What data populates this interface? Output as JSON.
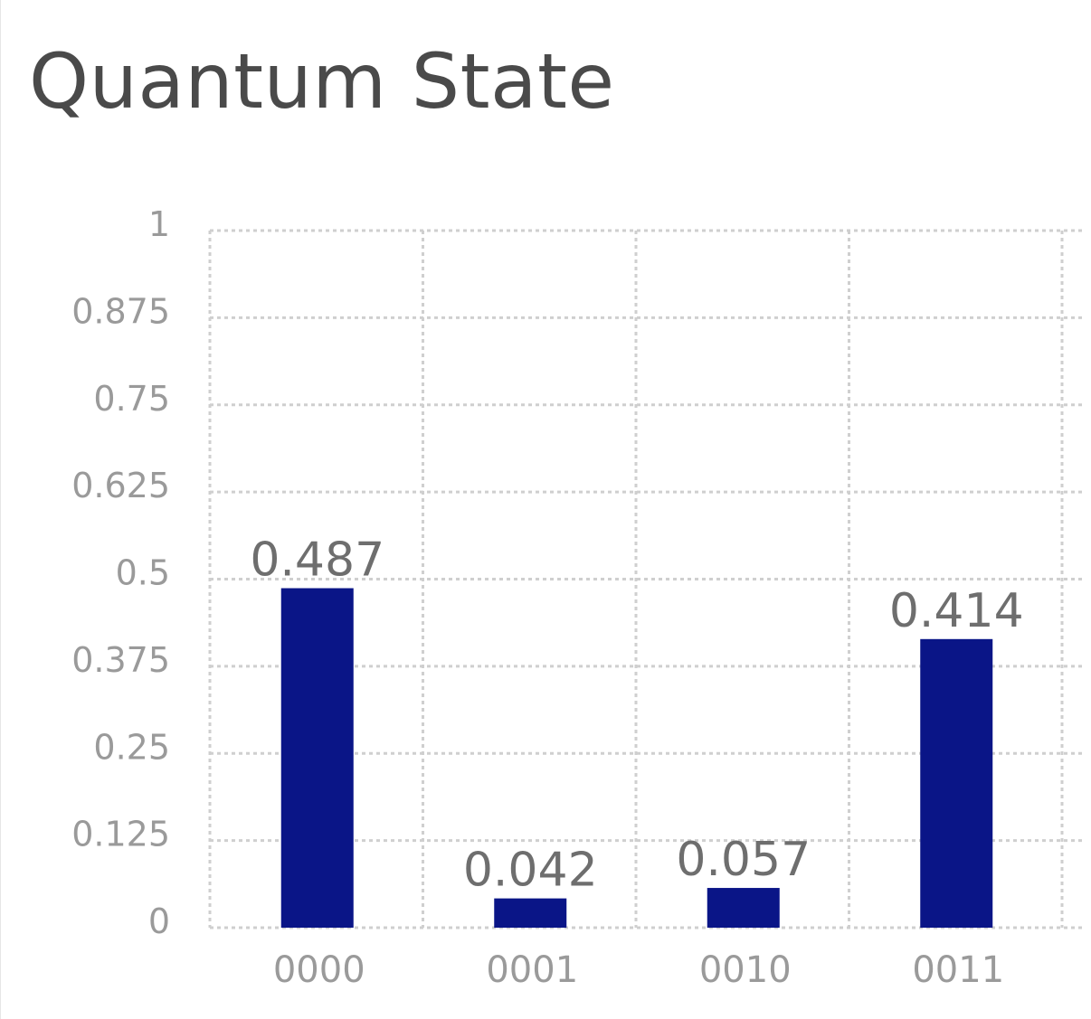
{
  "chart_data": {
    "type": "bar",
    "title": "Quantum State",
    "categories": [
      "0000",
      "0001",
      "0010",
      "0011"
    ],
    "values": [
      0.487,
      0.042,
      0.057,
      0.414
    ],
    "data_labels": [
      "0.487",
      "0.042",
      "0.057",
      "0.414"
    ],
    "xlabel": "",
    "ylabel": "",
    "ylim": [
      0,
      1
    ],
    "yticks": [
      0,
      0.125,
      0.25,
      0.375,
      0.5,
      0.625,
      0.75,
      0.875,
      1
    ],
    "ytick_labels": [
      "0",
      "0.125",
      "0.25",
      "0.375",
      "0.5",
      "0.625",
      "0.75",
      "0.875",
      "1"
    ],
    "grid": true,
    "bar_color": "#0a1587"
  }
}
